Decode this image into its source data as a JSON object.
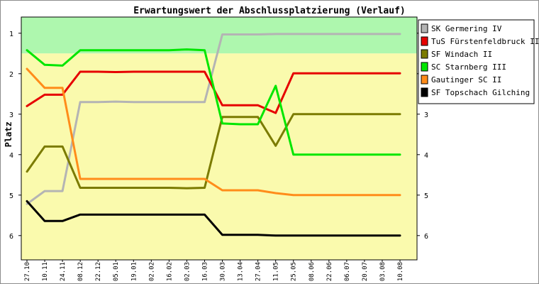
{
  "chart_data": {
    "type": "line",
    "title": "Erwartungswert der Abschlussplatzierung (Verlauf)",
    "ylabel": "Platz",
    "xlabel": "",
    "ylim": [
      0.6,
      6.6
    ],
    "y_inverted": true,
    "yticks": [
      1,
      2,
      3,
      4,
      5,
      6
    ],
    "grid": false,
    "legend_position": "right",
    "bands": [
      {
        "from": 0.6,
        "to": 1.5,
        "color": "#aef7ae"
      },
      {
        "from": 1.5,
        "to": 6.6,
        "color": "#fafaad"
      }
    ],
    "categories": [
      "27.10",
      "10.11",
      "24.11",
      "08.12",
      "22.12",
      "05.01",
      "19.01",
      "02.02",
      "16.02",
      "02.03",
      "16.03",
      "30.03",
      "13.04",
      "27.04",
      "11.05",
      "25.05",
      "08.06",
      "22.06",
      "06.07",
      "20.07",
      "03.08",
      "10.08"
    ],
    "series": [
      {
        "name": "SK Germering IV",
        "color": "#b4b4b4",
        "values": [
          5.22,
          4.9,
          4.9,
          2.7,
          2.7,
          2.69,
          2.7,
          2.7,
          2.7,
          2.7,
          2.7,
          1.03,
          1.03,
          1.03,
          1.02,
          1.02,
          1.02,
          1.02,
          1.02,
          1.02,
          1.02,
          1.02
        ]
      },
      {
        "name": "TuS Fürstenfeldbruck III",
        "color": "#e60000",
        "values": [
          2.8,
          2.52,
          2.52,
          1.95,
          1.95,
          1.96,
          1.95,
          1.95,
          1.95,
          1.95,
          1.95,
          2.78,
          2.78,
          2.78,
          2.97,
          1.99,
          1.99,
          1.99,
          1.99,
          1.99,
          1.99,
          1.99
        ]
      },
      {
        "name": "SF Windach II",
        "color": "#7b7b00",
        "values": [
          4.42,
          3.8,
          3.8,
          4.82,
          4.82,
          4.82,
          4.82,
          4.82,
          4.82,
          4.83,
          4.82,
          3.07,
          3.07,
          3.07,
          3.78,
          3.0,
          3.0,
          3.0,
          3.0,
          3.0,
          3.0,
          3.0
        ]
      },
      {
        "name": "SC Starnberg III",
        "color": "#00e600",
        "values": [
          1.42,
          1.78,
          1.8,
          1.42,
          1.42,
          1.42,
          1.42,
          1.42,
          1.42,
          1.4,
          1.42,
          3.23,
          3.25,
          3.25,
          2.3,
          4.0,
          4.0,
          4.0,
          4.0,
          4.0,
          4.0,
          4.0
        ]
      },
      {
        "name": "Gautinger SC II",
        "color": "#ff8c1a",
        "values": [
          1.88,
          2.35,
          2.35,
          4.6,
          4.6,
          4.6,
          4.6,
          4.6,
          4.6,
          4.6,
          4.6,
          4.88,
          4.88,
          4.88,
          4.95,
          5.0,
          5.0,
          5.0,
          5.0,
          5.0,
          5.0,
          5.0
        ]
      },
      {
        "name": "SF Topschach Gilching",
        "color": "#000000",
        "values": [
          5.15,
          5.64,
          5.64,
          5.48,
          5.48,
          5.48,
          5.48,
          5.48,
          5.48,
          5.48,
          5.48,
          5.98,
          5.98,
          5.98,
          6.0,
          6.0,
          6.0,
          6.0,
          6.0,
          6.0,
          6.0,
          6.0
        ]
      }
    ]
  }
}
